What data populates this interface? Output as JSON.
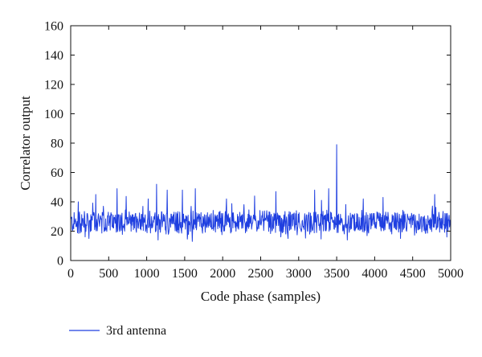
{
  "chart_data": {
    "type": "line",
    "title": "",
    "xlabel": "Code phase (samples)",
    "ylabel": "Correlator output",
    "xlim": [
      0,
      5000
    ],
    "ylim": [
      0,
      160
    ],
    "xticks": [
      0,
      500,
      1000,
      1500,
      2000,
      2500,
      3000,
      3500,
      4000,
      4500,
      5000
    ],
    "yticks": [
      0,
      20,
      40,
      60,
      80,
      100,
      120,
      140,
      160
    ],
    "grid": false,
    "legend_position": "bottom-left",
    "series": [
      {
        "name": "3rd antenna",
        "color": "#1f3fe0",
        "noise_profile": {
          "x_start": 0,
          "x_end": 5000,
          "sample_step": 5,
          "baseline": 26,
          "spread": 9,
          "min": 13,
          "max": 52
        },
        "peaks": [
          {
            "x": 100,
            "y": 40
          },
          {
            "x": 330,
            "y": 45
          },
          {
            "x": 610,
            "y": 49
          },
          {
            "x": 1020,
            "y": 42
          },
          {
            "x": 1130,
            "y": 52
          },
          {
            "x": 1270,
            "y": 48
          },
          {
            "x": 1470,
            "y": 48
          },
          {
            "x": 1640,
            "y": 49
          },
          {
            "x": 2050,
            "y": 42
          },
          {
            "x": 2420,
            "y": 44
          },
          {
            "x": 2700,
            "y": 47
          },
          {
            "x": 3210,
            "y": 48
          },
          {
            "x": 3300,
            "y": 41
          },
          {
            "x": 3395,
            "y": 49
          },
          {
            "x": 3500,
            "y": 79
          },
          {
            "x": 3850,
            "y": 42
          },
          {
            "x": 4110,
            "y": 43
          },
          {
            "x": 4790,
            "y": 45
          }
        ],
        "troughs": [
          {
            "x": 240,
            "y": 15
          },
          {
            "x": 1150,
            "y": 14
          },
          {
            "x": 1600,
            "y": 13
          },
          {
            "x": 2860,
            "y": 15
          },
          {
            "x": 3640,
            "y": 14
          },
          {
            "x": 4340,
            "y": 15
          },
          {
            "x": 4950,
            "y": 16
          }
        ]
      }
    ]
  }
}
